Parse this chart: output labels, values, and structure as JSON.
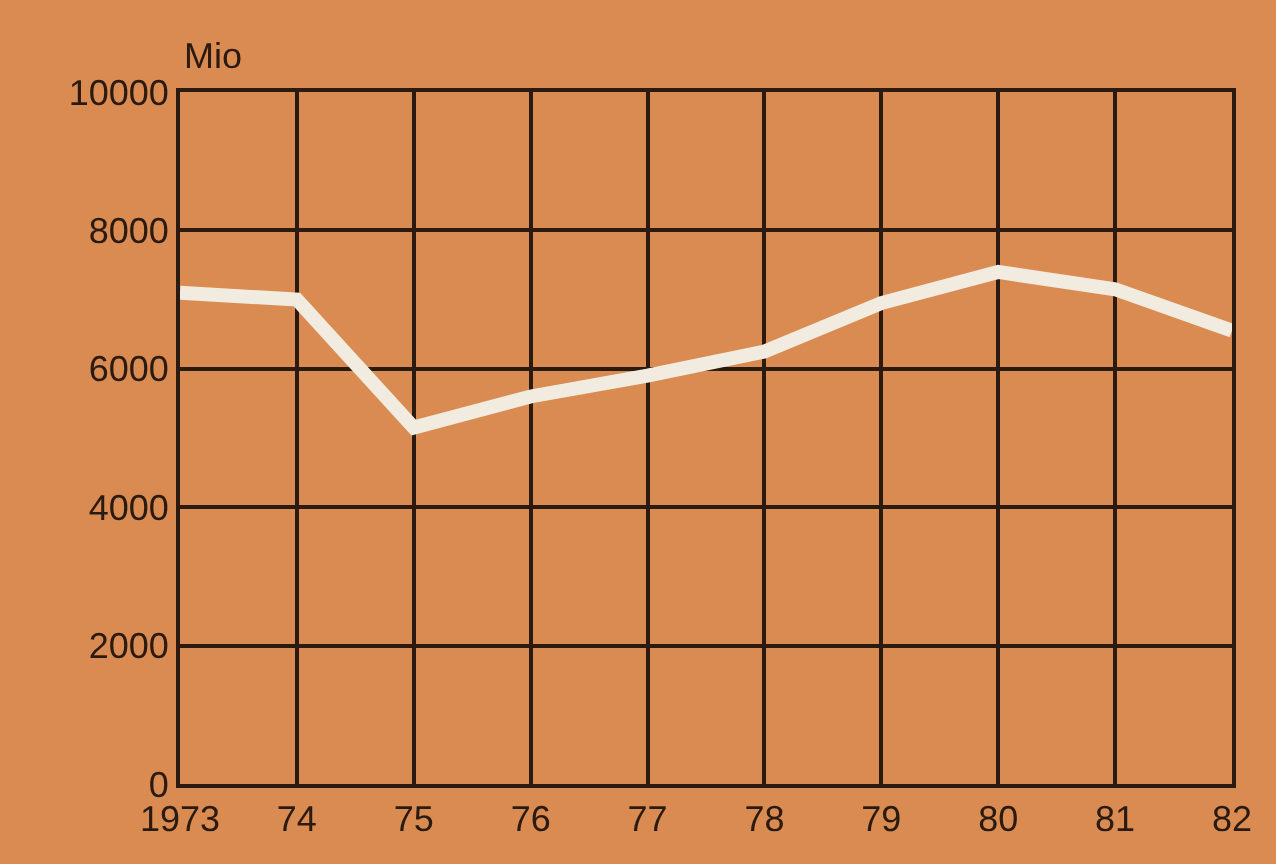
{
  "chart_data": {
    "type": "line",
    "ylabel": "Mio",
    "x": [
      1973,
      1974,
      1975,
      1976,
      1977,
      1978,
      1979,
      1980,
      1981,
      1982
    ],
    "series": [
      {
        "color": "#f2ebe0",
        "values": [
          7100,
          7000,
          5150,
          5600,
          5900,
          6250,
          6950,
          7400,
          7150,
          6550
        ]
      }
    ],
    "xlim": [
      1973,
      1982
    ],
    "ylim": [
      0,
      10000
    ],
    "xticks": [
      {
        "value": 1973,
        "label": "1973"
      },
      {
        "value": 1974,
        "label": "74"
      },
      {
        "value": 1975,
        "label": "75"
      },
      {
        "value": 1976,
        "label": "76"
      },
      {
        "value": 1977,
        "label": "77"
      },
      {
        "value": 1978,
        "label": "78"
      },
      {
        "value": 1979,
        "label": "79"
      },
      {
        "value": 1980,
        "label": "80"
      },
      {
        "value": 1981,
        "label": "81"
      },
      {
        "value": 1982,
        "label": "82"
      }
    ],
    "yticks": [
      0,
      2000,
      4000,
      6000,
      8000,
      10000
    ],
    "grid": true,
    "marker": "none",
    "line_style": "solid"
  }
}
